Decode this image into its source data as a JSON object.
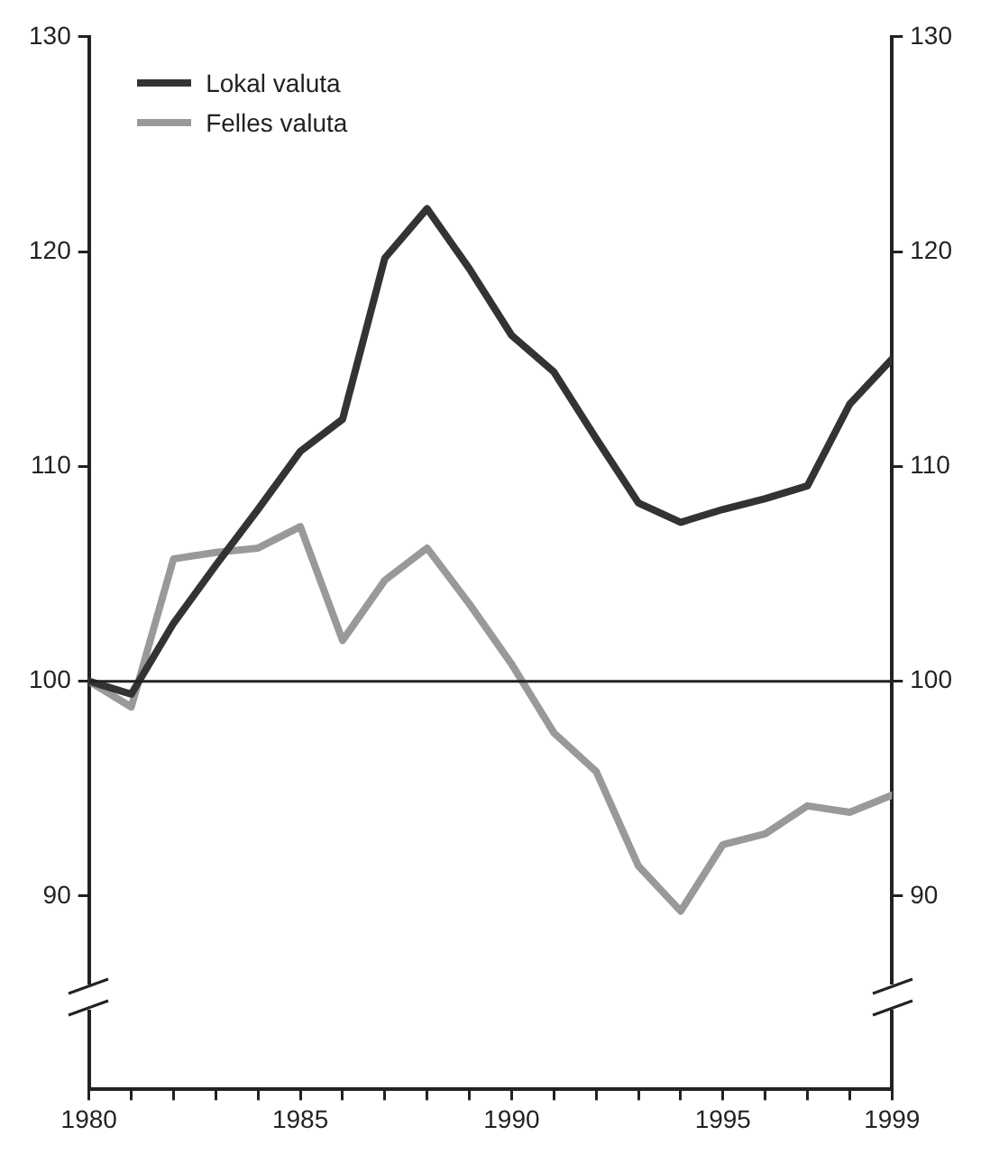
{
  "chart_data": {
    "type": "line",
    "x": [
      1980,
      1981,
      1982,
      1983,
      1984,
      1985,
      1986,
      1987,
      1988,
      1989,
      1990,
      1991,
      1992,
      1993,
      1994,
      1995,
      1996,
      1997,
      1998,
      1999
    ],
    "series": [
      {
        "name": "Lokal valuta",
        "color": "#333333",
        "values": [
          100,
          99.4,
          102.7,
          105.4,
          108.0,
          110.7,
          112.2,
          119.7,
          122.0,
          119.2,
          116.1,
          114.4,
          111.3,
          108.3,
          107.4,
          108.0,
          108.5,
          109.1,
          112.9,
          115.0
        ]
      },
      {
        "name": "Felles valuta",
        "color": "#999999",
        "values": [
          100,
          98.8,
          105.7,
          106.0,
          106.2,
          107.2,
          101.9,
          104.7,
          106.2,
          103.6,
          100.8,
          97.6,
          95.8,
          91.4,
          89.3,
          92.4,
          92.9,
          94.2,
          93.9,
          94.7
        ]
      }
    ],
    "xlim": [
      1980,
      1999
    ],
    "xticks": [
      1980,
      {
        "value": 1981,
        "label": null
      },
      {
        "value": 1982,
        "label": null
      },
      {
        "value": 1983,
        "label": null
      },
      {
        "value": 1984,
        "label": null
      },
      1985,
      {
        "value": 1986,
        "label": null
      },
      {
        "value": 1987,
        "label": null
      },
      {
        "value": 1988,
        "label": null
      },
      {
        "value": 1989,
        "label": null
      },
      1990,
      {
        "value": 1991,
        "label": null
      },
      {
        "value": 1992,
        "label": null
      },
      {
        "value": 1993,
        "label": null
      },
      {
        "value": 1994,
        "label": null
      },
      1995,
      {
        "value": 1996,
        "label": null
      },
      {
        "value": 1997,
        "label": null
      },
      {
        "value": 1998,
        "label": null
      },
      1999
    ],
    "ylim": [
      81,
      130
    ],
    "yticks": [
      90,
      100,
      110,
      120,
      130
    ],
    "y2lim": [
      81,
      130
    ],
    "y2ticks": [
      90,
      100,
      110,
      120,
      130
    ],
    "ref_lines": [
      {
        "axis": "y",
        "value": 100,
        "color": "#222222"
      }
    ],
    "grid": false,
    "legend": "top left",
    "marker": "none",
    "line_style": "solid"
  }
}
